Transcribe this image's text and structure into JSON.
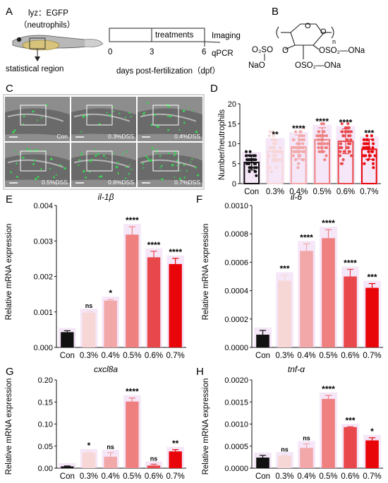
{
  "panel_labels": [
    "A",
    "B",
    "C",
    "D",
    "E",
    "F",
    "G",
    "H"
  ],
  "panel_a": {
    "strain_line1": "lyz：EGFP",
    "strain_line2": "（neutrophils）",
    "region_label": "statistical region",
    "timeline_box_label": "treatments",
    "tick_labels": [
      "0",
      "3",
      "6"
    ],
    "imaging_label": "Imaging",
    "qpcr_label": "qPCR",
    "axis_caption": "days post-fertilization（dpf）"
  },
  "panel_b": {
    "repeat_n": "n",
    "groups": [
      "O",
      "O",
      "OSO",
      "O",
      "ONa",
      "O",
      "SO",
      "NaO",
      "OSO",
      "O",
      "ONa"
    ],
    "left_group": "O₂SO",
    "left_na": "NaO",
    "right_group": "OSO₂—ONa",
    "bottom_group": "OSO₂—ONa"
  },
  "panel_c": {
    "image_labels": [
      "Con",
      "0.3%DSS",
      "0.4%DSS",
      "0.5%DSS",
      "0.6%DSS",
      "0.7%DSS"
    ],
    "accent_color": "#39d353"
  },
  "chart_data": [
    {
      "panel": "D",
      "type": "bar",
      "categories": [
        "Con",
        "0.3%",
        "0.4%",
        "0.5%",
        "0.6%",
        "0.7%"
      ],
      "values": [
        5.3,
        8.1,
        9.2,
        11.0,
        10.6,
        8.6
      ],
      "errors": [
        1.9,
        2.6,
        3.0,
        3.0,
        3.1,
        2.5
      ],
      "significance": [
        "",
        "**",
        "****",
        "****",
        "****",
        "***"
      ],
      "ylabel": "Number/neutrophils",
      "ylim": [
        0,
        20
      ],
      "yticks": [
        0,
        5,
        10,
        15,
        20
      ],
      "style": "scatter-dot-bar"
    },
    {
      "panel": "E",
      "type": "bar",
      "title": "il-1β",
      "categories": [
        "Con",
        "0.3%",
        "0.4%",
        "0.5%",
        "0.6%",
        "0.7%"
      ],
      "values": [
        0.00043,
        0.00098,
        0.00132,
        0.00318,
        0.00254,
        0.00235
      ],
      "errors": [
        4e-05,
        3e-05,
        3e-05,
        0.00022,
        0.00017,
        0.00016
      ],
      "significance": [
        "",
        "ns",
        "*",
        "****",
        "****",
        "****"
      ],
      "ylabel": "Relative mRNA expression",
      "ylim": [
        0,
        0.004
      ],
      "yticks": [
        "0.000",
        "0.001",
        "0.002",
        "0.003",
        "0.004"
      ]
    },
    {
      "panel": "F",
      "type": "bar",
      "title": "il-6",
      "categories": [
        "Con",
        "0.3%",
        "0.4%",
        "0.5%",
        "0.6%",
        "0.7%"
      ],
      "values": [
        9e-05,
        0.00047,
        0.00068,
        0.00077,
        0.0005,
        0.00042
      ],
      "errors": [
        3e-05,
        4e-05,
        5e-05,
        6e-05,
        5e-05,
        3e-05
      ],
      "significance": [
        "",
        "***",
        "****",
        "****",
        "****",
        "***"
      ],
      "ylabel": "Relative mRNA expression",
      "ylim": [
        0,
        0.001
      ],
      "yticks": [
        "0.0000",
        "0.0002",
        "0.0004",
        "0.0006",
        "0.0008",
        "0.0010"
      ]
    },
    {
      "panel": "G",
      "type": "bar",
      "title": "cxcl8a",
      "categories": [
        "Con",
        "0.3%",
        "0.4%",
        "0.5%",
        "0.6%",
        "0.7%"
      ],
      "values": [
        0.004,
        0.035,
        0.026,
        0.151,
        0.006,
        0.038
      ],
      "errors": [
        0.001,
        0.002,
        0.009,
        0.008,
        0.003,
        0.004
      ],
      "significance": [
        "",
        "*",
        "ns",
        "****",
        "ns",
        "**"
      ],
      "ylabel": "Relative mRNA expression",
      "ylim": [
        0,
        0.2
      ],
      "yticks": [
        "0.00",
        "0.05",
        "0.10",
        "0.15",
        "0.20"
      ]
    },
    {
      "panel": "H",
      "type": "bar",
      "title": "tnf-α",
      "categories": [
        "Con",
        "0.3%",
        "0.4%",
        "0.5%",
        "0.6%",
        "0.7%"
      ],
      "values": [
        0.00024,
        0.00028,
        0.00046,
        0.00157,
        0.00093,
        0.00063
      ],
      "errors": [
        5e-05,
        2e-05,
        9e-05,
        8e-05,
        1e-05,
        6e-05
      ],
      "significance": [
        "",
        "ns",
        "ns",
        "****",
        "***",
        "*"
      ],
      "ylabel": "Relative mRNA expression",
      "ylim": [
        0,
        0.002
      ],
      "yticks": [
        "0.0000",
        "0.0005",
        "0.0010",
        "0.0015",
        "0.0020"
      ]
    }
  ],
  "colors": {
    "series": [
      "#111111",
      "#f7d6d6",
      "#f2a8a8",
      "#ee8080",
      "#e8484b",
      "#e8060a"
    ],
    "halo": "#e9c7f0"
  }
}
